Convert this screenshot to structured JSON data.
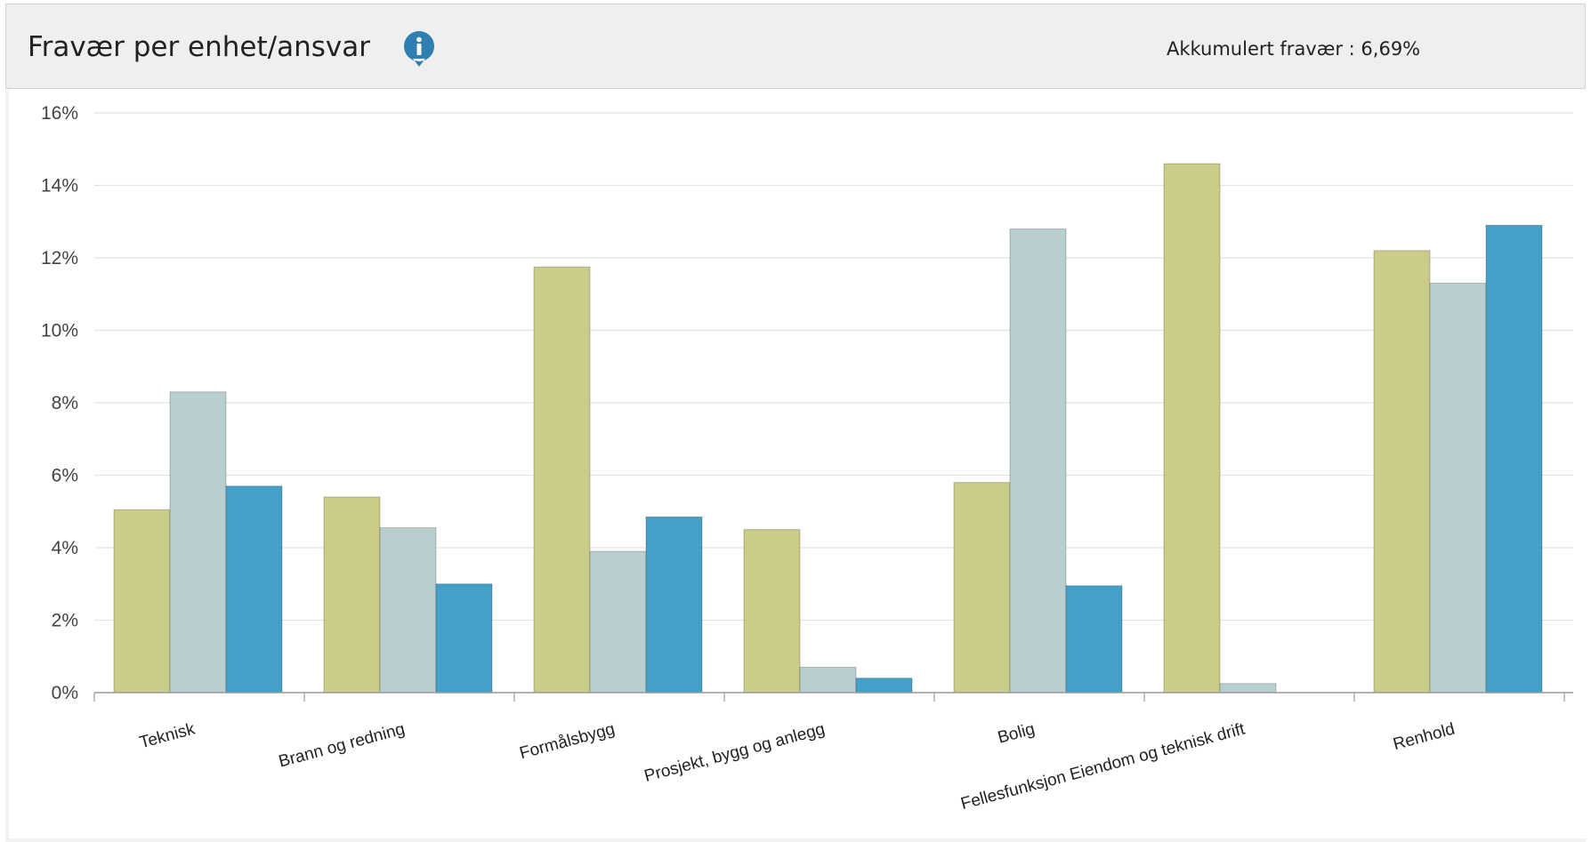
{
  "header": {
    "title": "Fravær per enhet/ansvar",
    "info_icon": "info-icon",
    "summary": "Akkumulert fravær : 6,69%"
  },
  "colors": {
    "header_bg": "#efefef",
    "info_icon": "#2f7fb3",
    "gridline": "#e4e4e4"
  },
  "chart_data": {
    "type": "bar",
    "title": "",
    "xlabel": "",
    "ylabel": "",
    "ylim": [
      0,
      16
    ],
    "yticks": [
      0,
      2,
      4,
      6,
      8,
      10,
      12,
      14,
      16
    ],
    "ytick_labels": [
      "0%",
      "2%",
      "4%",
      "6%",
      "8%",
      "10%",
      "12%",
      "14%",
      "16%"
    ],
    "grid": true,
    "legend": "none",
    "categories": [
      "Teknisk",
      "Brann og redning",
      "Formålsbygg",
      "Prosjekt, bygg og anlegg",
      "Bolig",
      "Fellesfunksjon Eiendom og teknisk drift",
      "Renhold"
    ],
    "series": [
      {
        "color": "#cbcb8a",
        "values": [
          5.05,
          5.4,
          11.75,
          4.5,
          5.8,
          14.6,
          12.2
        ]
      },
      {
        "color": "#b9cfcf",
        "values": [
          8.3,
          4.55,
          3.9,
          0.7,
          12.8,
          0.25,
          11.3
        ]
      },
      {
        "color": "#45a0c9",
        "values": [
          5.7,
          3.0,
          4.85,
          0.4,
          2.95,
          0,
          12.9
        ]
      }
    ]
  }
}
